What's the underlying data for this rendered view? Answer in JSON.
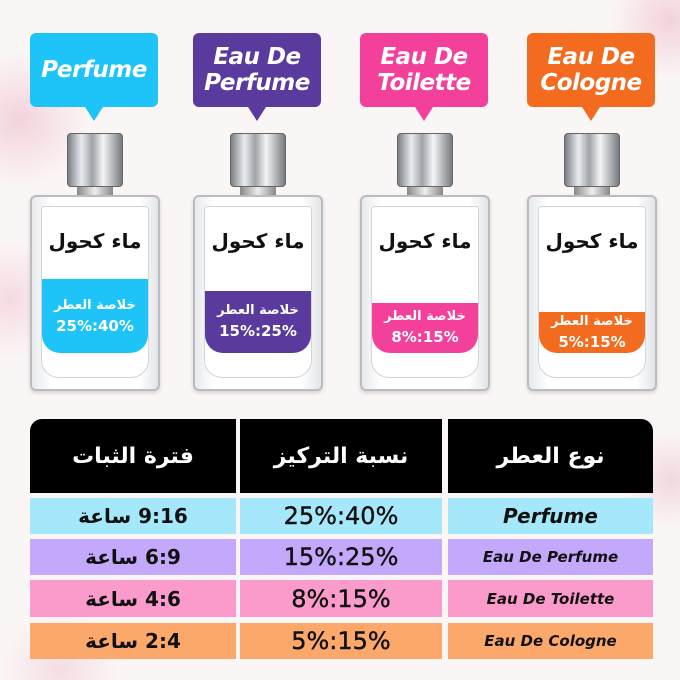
{
  "bottles": [
    {
      "type": "Perfume",
      "alcohol_label": "ماء كحول",
      "essence_label": "خلاصة العطر",
      "concentration": "25%:40%",
      "color": "#1ec4f8",
      "fill_percent": 50
    },
    {
      "type": "Eau De Perfume",
      "alcohol_label": "ماء كحول",
      "essence_label": "خلاصة العطر",
      "concentration": "15%:25%",
      "color": "#5b3a9e",
      "fill_percent": 42
    },
    {
      "type": "Eau De Toilette",
      "alcohol_label": "ماء كحول",
      "essence_label": "خلاصة العطر",
      "concentration": "8%:15%",
      "color": "#f3409b",
      "fill_percent": 34
    },
    {
      "type": "Eau De Cologne",
      "alcohol_label": "ماء كحول",
      "essence_label": "خلاصة العطر",
      "concentration": "5%:15%",
      "color": "#f36b1e",
      "fill_percent": 28
    }
  ],
  "table": {
    "headers": {
      "type": "نوع العطر",
      "concentration": "نسبة التركيز",
      "duration": "فترة الثبات"
    },
    "rows": [
      {
        "type": "Perfume",
        "concentration": "25%:40%",
        "duration": "9:16 ساعة",
        "color": "#a6e8fb"
      },
      {
        "type": "Eau De Perfume",
        "concentration": "15%:25%",
        "duration": "6:9 ساعة",
        "color": "#c4a8fb"
      },
      {
        "type": "Eau De Toilette",
        "concentration": "8%:15%",
        "duration": "4:6 ساعة",
        "color": "#fb9bcb"
      },
      {
        "type": "Eau De Cologne",
        "concentration": "5%:15%",
        "duration": "2:4 ساعة",
        "color": "#fda86b"
      }
    ]
  }
}
